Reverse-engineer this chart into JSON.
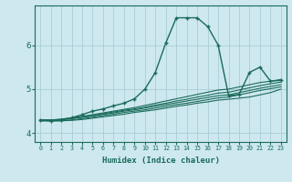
{
  "title": "",
  "xlabel": "Humidex (Indice chaleur)",
  "ylabel": "",
  "bg_color": "#cde8ef",
  "line_color": "#1a6b5a",
  "grid_color": "#aacdd6",
  "xlim": [
    -0.5,
    23.5
  ],
  "ylim": [
    3.8,
    6.9
  ],
  "xticks": [
    0,
    1,
    2,
    3,
    4,
    5,
    6,
    7,
    8,
    9,
    10,
    11,
    12,
    13,
    14,
    15,
    16,
    17,
    18,
    19,
    20,
    21,
    22,
    23
  ],
  "yticks": [
    4,
    5,
    6
  ],
  "lines": [
    {
      "x": [
        0,
        1,
        2,
        3,
        4,
        5,
        6,
        7,
        8,
        9,
        10,
        11,
        12,
        13,
        14,
        15,
        16,
        17,
        18,
        19,
        20,
        21,
        22,
        23
      ],
      "y": [
        4.3,
        4.28,
        4.3,
        4.35,
        4.42,
        4.5,
        4.55,
        4.62,
        4.68,
        4.78,
        5.0,
        5.38,
        6.05,
        6.62,
        6.62,
        6.62,
        6.42,
        6.0,
        4.85,
        4.88,
        5.38,
        5.5,
        5.18,
        5.2
      ],
      "marker": "+",
      "ms": 3.5,
      "lw": 1.0
    },
    {
      "x": [
        0,
        1,
        2,
        3,
        4,
        5,
        6,
        7,
        8,
        9,
        10,
        11,
        12,
        13,
        14,
        15,
        16,
        17,
        18,
        19,
        20,
        21,
        22,
        23
      ],
      "y": [
        4.3,
        4.3,
        4.32,
        4.35,
        4.38,
        4.42,
        4.46,
        4.5,
        4.54,
        4.58,
        4.63,
        4.68,
        4.73,
        4.78,
        4.83,
        4.88,
        4.93,
        4.98,
        5.0,
        5.05,
        5.1,
        5.15,
        5.18,
        5.22
      ],
      "marker": null,
      "ms": 0,
      "lw": 0.8
    },
    {
      "x": [
        0,
        1,
        2,
        3,
        4,
        5,
        6,
        7,
        8,
        9,
        10,
        11,
        12,
        13,
        14,
        15,
        16,
        17,
        18,
        19,
        20,
        21,
        22,
        23
      ],
      "y": [
        4.3,
        4.3,
        4.31,
        4.34,
        4.37,
        4.4,
        4.44,
        4.48,
        4.52,
        4.55,
        4.59,
        4.64,
        4.68,
        4.73,
        4.77,
        4.82,
        4.86,
        4.91,
        4.93,
        4.98,
        5.03,
        5.08,
        5.12,
        5.16
      ],
      "marker": null,
      "ms": 0,
      "lw": 0.8
    },
    {
      "x": [
        0,
        1,
        2,
        3,
        4,
        5,
        6,
        7,
        8,
        9,
        10,
        11,
        12,
        13,
        14,
        15,
        16,
        17,
        18,
        19,
        20,
        21,
        22,
        23
      ],
      "y": [
        4.3,
        4.3,
        4.3,
        4.33,
        4.36,
        4.39,
        4.43,
        4.46,
        4.5,
        4.53,
        4.57,
        4.61,
        4.65,
        4.69,
        4.73,
        4.77,
        4.81,
        4.85,
        4.87,
        4.92,
        4.97,
        5.02,
        5.06,
        5.1
      ],
      "marker": null,
      "ms": 0,
      "lw": 0.8
    },
    {
      "x": [
        0,
        1,
        2,
        3,
        4,
        5,
        6,
        7,
        8,
        9,
        10,
        11,
        12,
        13,
        14,
        15,
        16,
        17,
        18,
        19,
        20,
        21,
        22,
        23
      ],
      "y": [
        4.28,
        4.28,
        4.28,
        4.3,
        4.33,
        4.36,
        4.4,
        4.43,
        4.47,
        4.5,
        4.53,
        4.57,
        4.61,
        4.65,
        4.68,
        4.72,
        4.76,
        4.8,
        4.82,
        4.87,
        4.92,
        4.97,
        5.01,
        5.05
      ],
      "marker": null,
      "ms": 0,
      "lw": 0.8
    },
    {
      "x": [
        0,
        1,
        2,
        3,
        4,
        5,
        6,
        7,
        8,
        9,
        10,
        11,
        12,
        13,
        14,
        15,
        16,
        17,
        18,
        20,
        21,
        22,
        23
      ],
      "y": [
        4.28,
        4.28,
        4.28,
        4.29,
        4.31,
        4.34,
        4.37,
        4.4,
        4.43,
        4.47,
        4.5,
        4.53,
        4.57,
        4.61,
        4.64,
        4.68,
        4.71,
        4.75,
        4.77,
        4.82,
        4.87,
        4.92,
        5.0
      ],
      "marker": null,
      "ms": 0,
      "lw": 0.8
    }
  ]
}
